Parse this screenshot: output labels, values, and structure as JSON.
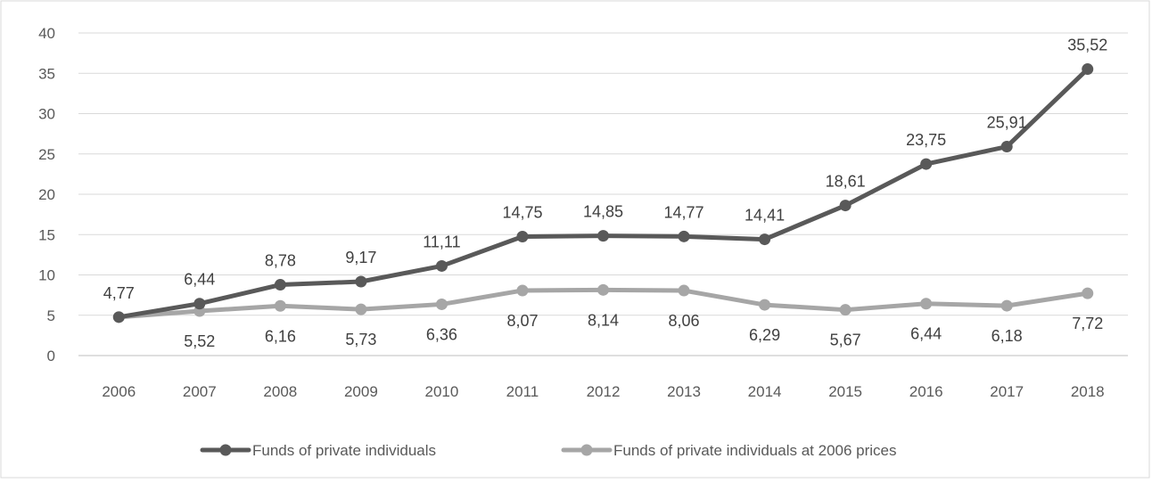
{
  "chart_data": {
    "type": "line",
    "categories": [
      "2006",
      "2007",
      "2008",
      "2009",
      "2010",
      "2011",
      "2012",
      "2013",
      "2014",
      "2015",
      "2016",
      "2017",
      "2018"
    ],
    "ylim": [
      0,
      40
    ],
    "yticks": [
      "0",
      "5",
      "10",
      "15",
      "20",
      "25",
      "30",
      "35",
      "40"
    ],
    "grid": "horizontal",
    "legend_position": "bottom",
    "series": [
      {
        "name": "Funds of private individuals",
        "color": "#595959",
        "values": [
          4.77,
          6.44,
          8.78,
          9.17,
          11.11,
          14.75,
          14.85,
          14.77,
          14.41,
          18.61,
          23.75,
          25.91,
          35.52
        ],
        "labels": [
          "4,77",
          "6,44",
          "8,78",
          "9,17",
          "11,11",
          "14,75",
          "14,85",
          "14,77",
          "14,41",
          "18,61",
          "23,75",
          "25,91",
          "35,52"
        ],
        "label_position": "above"
      },
      {
        "name": "Funds of private individuals at 2006 prices",
        "color": "#a6a6a6",
        "values": [
          4.77,
          5.52,
          6.16,
          5.73,
          6.36,
          8.07,
          8.14,
          8.06,
          6.29,
          5.67,
          6.44,
          6.18,
          7.72
        ],
        "labels": [
          "",
          "5,52",
          "6,16",
          "5,73",
          "6,36",
          "8,07",
          "8,14",
          "8,06",
          "6,29",
          "5,67",
          "6,44",
          "6,18",
          "7,72"
        ],
        "label_position": "below"
      }
    ]
  }
}
